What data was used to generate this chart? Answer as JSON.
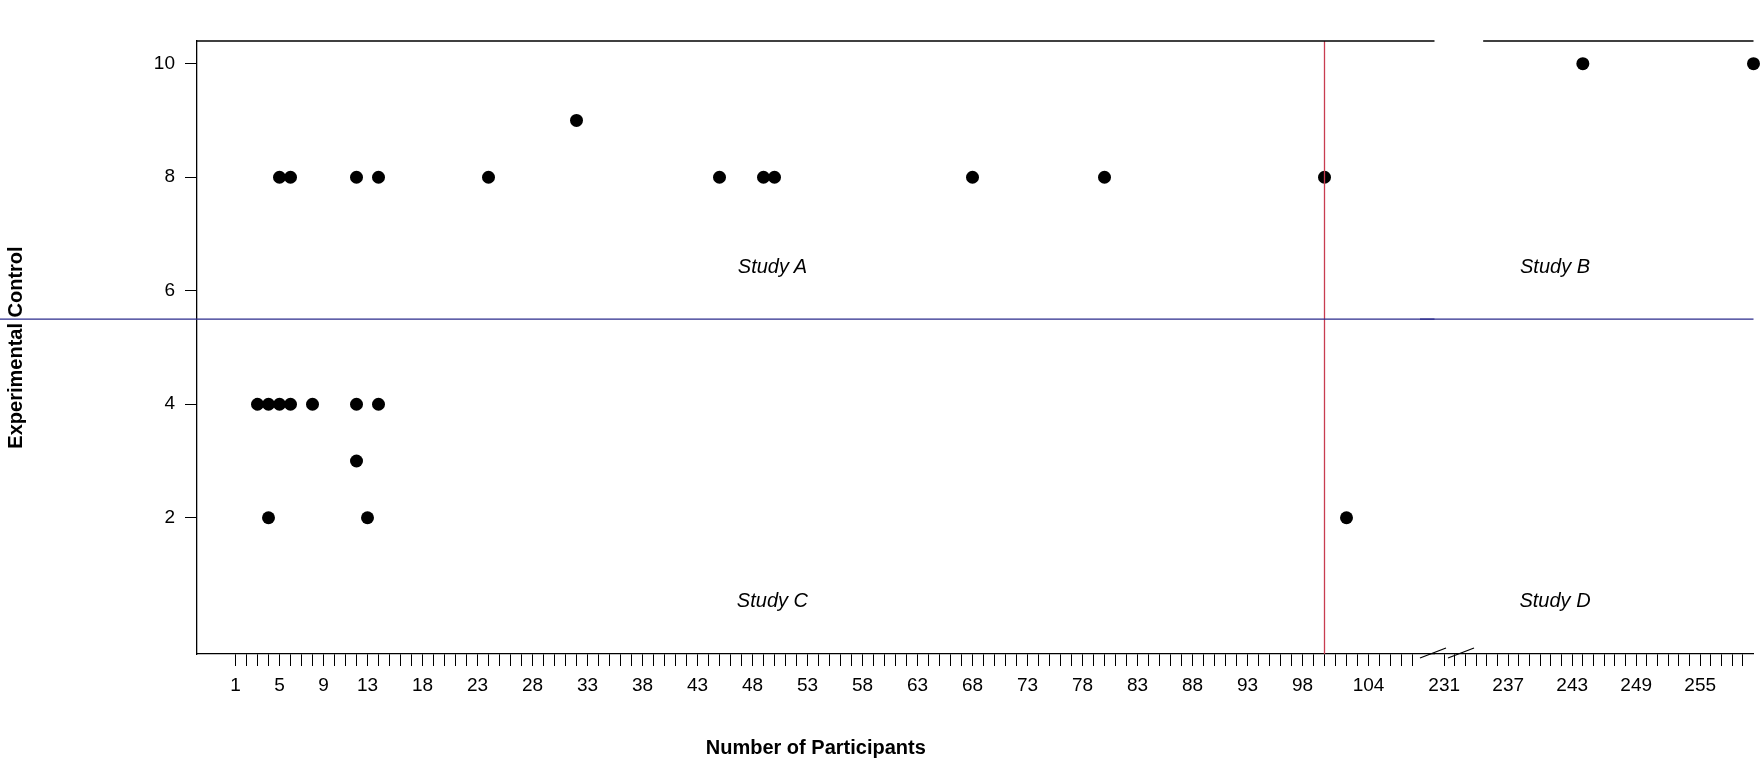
{
  "chart_data": [
    {
      "type": "scatter",
      "xlabel": "Number of Participants",
      "ylabel": "Experimental Control",
      "grid": false,
      "marker": "circle",
      "tick_labels": "xy",
      "series": [
        {
          "color": "#000000",
          "x": [
            5,
            6,
            12,
            14,
            24,
            32,
            45,
            49,
            50,
            68,
            80,
            100,
            3,
            4,
            5,
            6,
            8,
            12,
            14,
            12,
            4,
            13,
            102
          ],
          "values": [
            8,
            8,
            8,
            8,
            8,
            9,
            8,
            8,
            8,
            8,
            8,
            8,
            4,
            4,
            4,
            4,
            4,
            4,
            4,
            3,
            2,
            2,
            2
          ]
        }
      ],
      "xlim": [
        -2.5,
        110
      ],
      "ylim": [
        -0.4,
        10.4
      ],
      "yticks": [
        2,
        4,
        6,
        8,
        10
      ],
      "xticks": [
        1,
        {
          "value": 2,
          "label": null
        },
        {
          "value": 3,
          "label": null
        },
        {
          "value": 4,
          "label": null
        },
        5,
        {
          "value": 6,
          "label": null
        },
        {
          "value": 7,
          "label": null
        },
        {
          "value": 8,
          "label": null
        },
        9,
        {
          "value": 10,
          "label": null
        },
        {
          "value": 11,
          "label": null
        },
        {
          "value": 12,
          "label": null
        },
        13,
        {
          "value": 14,
          "label": null
        },
        {
          "value": 15,
          "label": null
        },
        {
          "value": 16,
          "label": null
        },
        {
          "value": 17,
          "label": null
        },
        18,
        {
          "value": 19,
          "label": null
        },
        {
          "value": 20,
          "label": null
        },
        {
          "value": 21,
          "label": null
        },
        {
          "value": 22,
          "label": null
        },
        23,
        {
          "value": 24,
          "label": null
        },
        {
          "value": 25,
          "label": null
        },
        {
          "value": 26,
          "label": null
        },
        {
          "value": 27,
          "label": null
        },
        28,
        {
          "value": 29,
          "label": null
        },
        {
          "value": 30,
          "label": null
        },
        {
          "value": 31,
          "label": null
        },
        {
          "value": 32,
          "label": null
        },
        33,
        {
          "value": 34,
          "label": null
        },
        {
          "value": 35,
          "label": null
        },
        {
          "value": 36,
          "label": null
        },
        {
          "value": 37,
          "label": null
        },
        38,
        {
          "value": 39,
          "label": null
        },
        {
          "value": 40,
          "label": null
        },
        {
          "value": 41,
          "label": null
        },
        {
          "value": 42,
          "label": null
        },
        43,
        {
          "value": 44,
          "label": null
        },
        {
          "value": 45,
          "label": null
        },
        {
          "value": 46,
          "label": null
        },
        {
          "value": 47,
          "label": null
        },
        48,
        {
          "value": 49,
          "label": null
        },
        {
          "value": 50,
          "label": null
        },
        {
          "value": 51,
          "label": null
        },
        {
          "value": 52,
          "label": null
        },
        53,
        {
          "value": 54,
          "label": null
        },
        {
          "value": 55,
          "label": null
        },
        {
          "value": 56,
          "label": null
        },
        {
          "value": 57,
          "label": null
        },
        58,
        {
          "value": 59,
          "label": null
        },
        {
          "value": 60,
          "label": null
        },
        {
          "value": 61,
          "label": null
        },
        {
          "value": 62,
          "label": null
        },
        63,
        {
          "value": 64,
          "label": null
        },
        {
          "value": 65,
          "label": null
        },
        {
          "value": 66,
          "label": null
        },
        {
          "value": 67,
          "label": null
        },
        68,
        {
          "value": 69,
          "label": null
        },
        {
          "value": 70,
          "label": null
        },
        {
          "value": 71,
          "label": null
        },
        {
          "value": 72,
          "label": null
        },
        73,
        {
          "value": 74,
          "label": null
        },
        {
          "value": 75,
          "label": null
        },
        {
          "value": 76,
          "label": null
        },
        {
          "value": 77,
          "label": null
        },
        78,
        {
          "value": 79,
          "label": null
        },
        {
          "value": 80,
          "label": null
        },
        {
          "value": 81,
          "label": null
        },
        {
          "value": 82,
          "label": null
        },
        83,
        {
          "value": 84,
          "label": null
        },
        {
          "value": 85,
          "label": null
        },
        {
          "value": 86,
          "label": null
        },
        {
          "value": 87,
          "label": null
        },
        88,
        {
          "value": 89,
          "label": null
        },
        {
          "value": 90,
          "label": null
        },
        {
          "value": 91,
          "label": null
        },
        {
          "value": 92,
          "label": null
        },
        93,
        {
          "value": 94,
          "label": null
        },
        {
          "value": 95,
          "label": null
        },
        {
          "value": 96,
          "label": null
        },
        {
          "value": 97,
          "label": null
        },
        98,
        {
          "value": 99,
          "label": null
        },
        {
          "value": 100,
          "label": null
        },
        {
          "value": 101,
          "label": null
        },
        {
          "value": 102,
          "label": null
        },
        {
          "value": 103,
          "label": null
        },
        104,
        {
          "value": 105,
          "label": null
        },
        {
          "value": 106,
          "label": null
        },
        {
          "value": 107,
          "label": null
        },
        {
          "value": 108,
          "label": null
        }
      ],
      "ref_lines": [
        {
          "axis": "x",
          "value": 100,
          "color": "#c83c50"
        },
        {
          "axis": "y",
          "value": 5.5,
          "color": "#2b2b8c"
        }
      ],
      "annotations": [
        "Study A",
        "Study C"
      ]
    },
    {
      "type": "scatter",
      "grid": false,
      "marker": "circle",
      "tick_labels": "x",
      "series": [
        {
          "color": "#000000",
          "x": [
            244,
            260
          ],
          "values": [
            10,
            10
          ]
        }
      ],
      "xlim": [
        229.5,
        260
      ],
      "ylim": [
        -0.4,
        10.4
      ],
      "xticks": [
        231,
        {
          "value": 232,
          "label": null
        },
        {
          "value": 233,
          "label": null
        },
        {
          "value": 234,
          "label": null
        },
        {
          "value": 235,
          "label": null
        },
        {
          "value": 236,
          "label": null
        },
        237,
        {
          "value": 238,
          "label": null
        },
        {
          "value": 239,
          "label": null
        },
        {
          "value": 240,
          "label": null
        },
        {
          "value": 241,
          "label": null
        },
        {
          "value": 242,
          "label": null
        },
        243,
        {
          "value": 244,
          "label": null
        },
        {
          "value": 245,
          "label": null
        },
        {
          "value": 246,
          "label": null
        },
        {
          "value": 247,
          "label": null
        },
        {
          "value": 248,
          "label": null
        },
        249,
        {
          "value": 250,
          "label": null
        },
        {
          "value": 251,
          "label": null
        },
        {
          "value": 252,
          "label": null
        },
        {
          "value": 253,
          "label": null
        },
        {
          "value": 254,
          "label": null
        },
        255,
        {
          "value": 256,
          "label": null
        },
        {
          "value": 257,
          "label": null
        },
        {
          "value": 258,
          "label": null
        },
        {
          "value": 259,
          "label": null
        }
      ],
      "ref_lines": [
        {
          "axis": "y",
          "value": 5.5,
          "color": "#2b2b8c"
        }
      ],
      "annotations": [
        "Study B",
        "Study D"
      ]
    }
  ]
}
